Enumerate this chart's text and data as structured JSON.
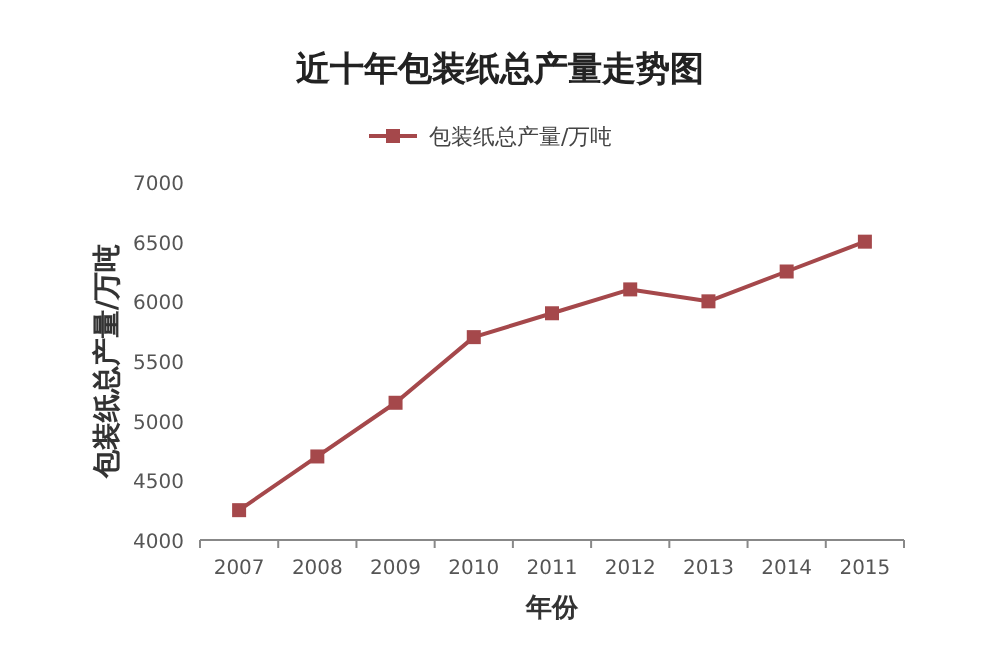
{
  "chart_data": {
    "type": "line",
    "title": "近十年包装纸总产量走势图",
    "xlabel": "年份",
    "ylabel": "包装纸总产量/万吨",
    "categories": [
      "2007",
      "2008",
      "2009",
      "2010",
      "2011",
      "2012",
      "2013",
      "2014",
      "2015"
    ],
    "series": [
      {
        "name": "包装纸总产量/万吨",
        "color": "#a5484b",
        "values": [
          4250,
          4700,
          5150,
          5700,
          5900,
          6100,
          6000,
          6250,
          6500
        ]
      }
    ],
    "ylim": [
      4000,
      7000
    ],
    "yticks": [
      4000,
      4500,
      5000,
      5500,
      6000,
      6500,
      7000
    ],
    "legend": "top",
    "marker": "square",
    "line_style": "solid"
  }
}
